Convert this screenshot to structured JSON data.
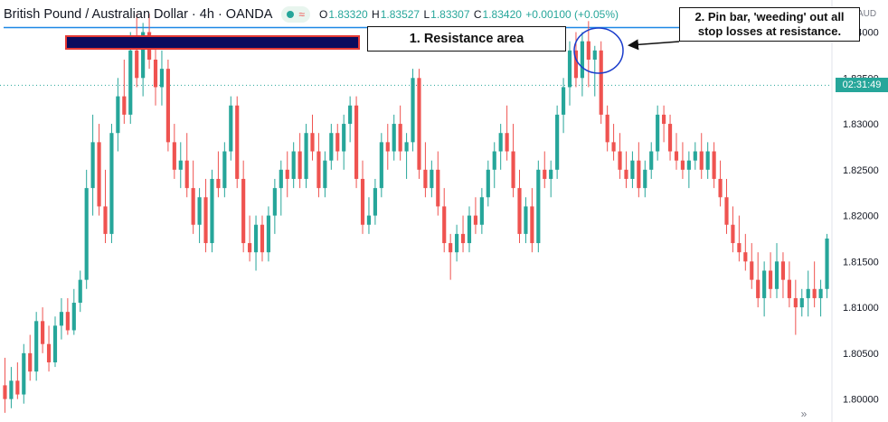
{
  "header": {
    "title": "British Pound / Australian Dollar · 4h · OANDA",
    "status_wave": "≈",
    "ohlc": {
      "o_label": "O",
      "o_value": "1.83320",
      "h_label": "H",
      "h_value": "1.83527",
      "l_label": "L",
      "l_value": "1.83307",
      "c_label": "C",
      "c_value": "1.83420",
      "change": "+0.00100 (+0.05%)"
    }
  },
  "annotations": {
    "resistance_label": "1. Resistance area",
    "pinbar_label_line1": "2. Pin bar, 'weeding' out all",
    "pinbar_label_line2": "stop losses at resistance."
  },
  "axis": {
    "currency": "AUD",
    "countdown": "02:31:49"
  },
  "scroll_icon": "double-chevron-right-icon",
  "colors": {
    "up": "#26a69a",
    "down": "#ef5350",
    "resistance_line": "#1e88e5",
    "annotation_circle": "#1a3ccc"
  },
  "chart_data": {
    "type": "candlestick",
    "title": "British Pound / Australian Dollar · 4h · OANDA",
    "ylim": [
      1.7975,
      1.8435
    ],
    "yticks": [
      1.8,
      1.805,
      1.81,
      1.815,
      1.82,
      1.825,
      1.83,
      1.835,
      1.84
    ],
    "ytick_labels": [
      "1.80000",
      "1.80500",
      "1.81000",
      "1.81500",
      "1.82000",
      "1.82500",
      "1.83000",
      "1.83500",
      "1.84000"
    ],
    "resistance_level": 1.8405,
    "last_price": 1.8342,
    "grid": false,
    "candles": [
      [
        1.8015,
        1.8045,
        1.7985,
        1.8
      ],
      [
        1.8,
        1.8035,
        1.799,
        1.802
      ],
      [
        1.802,
        1.804,
        1.8,
        1.8005
      ],
      [
        1.8005,
        1.806,
        1.7995,
        1.805
      ],
      [
        1.805,
        1.807,
        1.802,
        1.803
      ],
      [
        1.803,
        1.8095,
        1.802,
        1.8085
      ],
      [
        1.8085,
        1.81,
        1.805,
        1.806
      ],
      [
        1.806,
        1.808,
        1.803,
        1.804
      ],
      [
        1.804,
        1.809,
        1.8035,
        1.808
      ],
      [
        1.808,
        1.811,
        1.8065,
        1.8095
      ],
      [
        1.8095,
        1.811,
        1.807,
        1.8075
      ],
      [
        1.8075,
        1.812,
        1.807,
        1.8105
      ],
      [
        1.8105,
        1.814,
        1.8095,
        1.813
      ],
      [
        1.813,
        1.825,
        1.812,
        1.823
      ],
      [
        1.823,
        1.831,
        1.82,
        1.828
      ],
      [
        1.828,
        1.83,
        1.82,
        1.821
      ],
      [
        1.821,
        1.825,
        1.817,
        1.818
      ],
      [
        1.818,
        1.83,
        1.817,
        1.829
      ],
      [
        1.829,
        1.835,
        1.827,
        1.833
      ],
      [
        1.833,
        1.837,
        1.83,
        1.831
      ],
      [
        1.831,
        1.84,
        1.83,
        1.838
      ],
      [
        1.838,
        1.842,
        1.834,
        1.835
      ],
      [
        1.835,
        1.841,
        1.833,
        1.84
      ],
      [
        1.84,
        1.842,
        1.836,
        1.837
      ],
      [
        1.837,
        1.839,
        1.832,
        1.834
      ],
      [
        1.834,
        1.838,
        1.832,
        1.836
      ],
      [
        1.836,
        1.837,
        1.827,
        1.828
      ],
      [
        1.828,
        1.83,
        1.824,
        1.825
      ],
      [
        1.825,
        1.828,
        1.823,
        1.826
      ],
      [
        1.826,
        1.829,
        1.822,
        1.823
      ],
      [
        1.823,
        1.826,
        1.818,
        1.819
      ],
      [
        1.819,
        1.823,
        1.817,
        1.822
      ],
      [
        1.822,
        1.824,
        1.816,
        1.817
      ],
      [
        1.817,
        1.825,
        1.816,
        1.824
      ],
      [
        1.824,
        1.827,
        1.822,
        1.823
      ],
      [
        1.823,
        1.828,
        1.822,
        1.827
      ],
      [
        1.827,
        1.833,
        1.826,
        1.832
      ],
      [
        1.832,
        1.833,
        1.823,
        1.824
      ],
      [
        1.824,
        1.826,
        1.816,
        1.817
      ],
      [
        1.817,
        1.82,
        1.815,
        1.816
      ],
      [
        1.816,
        1.82,
        1.814,
        1.819
      ],
      [
        1.819,
        1.82,
        1.815,
        1.816
      ],
      [
        1.816,
        1.821,
        1.815,
        1.82
      ],
      [
        1.82,
        1.824,
        1.818,
        1.823
      ],
      [
        1.823,
        1.826,
        1.82,
        1.825
      ],
      [
        1.825,
        1.827,
        1.822,
        1.824
      ],
      [
        1.824,
        1.828,
        1.823,
        1.827
      ],
      [
        1.827,
        1.829,
        1.823,
        1.824
      ],
      [
        1.824,
        1.83,
        1.823,
        1.829
      ],
      [
        1.829,
        1.831,
        1.826,
        1.827
      ],
      [
        1.827,
        1.829,
        1.822,
        1.823
      ],
      [
        1.823,
        1.827,
        1.822,
        1.826
      ],
      [
        1.826,
        1.83,
        1.825,
        1.829
      ],
      [
        1.829,
        1.83,
        1.826,
        1.827
      ],
      [
        1.827,
        1.831,
        1.825,
        1.83
      ],
      [
        1.83,
        1.833,
        1.828,
        1.832
      ],
      [
        1.832,
        1.833,
        1.823,
        1.824
      ],
      [
        1.824,
        1.826,
        1.818,
        1.819
      ],
      [
        1.819,
        1.822,
        1.818,
        1.82
      ],
      [
        1.82,
        1.824,
        1.819,
        1.823
      ],
      [
        1.823,
        1.829,
        1.822,
        1.828
      ],
      [
        1.828,
        1.83,
        1.825,
        1.827
      ],
      [
        1.827,
        1.831,
        1.826,
        1.83
      ],
      [
        1.83,
        1.832,
        1.826,
        1.827
      ],
      [
        1.827,
        1.829,
        1.824,
        1.828
      ],
      [
        1.828,
        1.836,
        1.827,
        1.835
      ],
      [
        1.835,
        1.836,
        1.824,
        1.825
      ],
      [
        1.825,
        1.828,
        1.822,
        1.823
      ],
      [
        1.823,
        1.826,
        1.822,
        1.825
      ],
      [
        1.825,
        1.827,
        1.82,
        1.821
      ],
      [
        1.821,
        1.823,
        1.816,
        1.817
      ],
      [
        1.817,
        1.818,
        1.813,
        1.816
      ],
      [
        1.816,
        1.819,
        1.815,
        1.818
      ],
      [
        1.818,
        1.82,
        1.816,
        1.817
      ],
      [
        1.817,
        1.821,
        1.816,
        1.82
      ],
      [
        1.82,
        1.822,
        1.818,
        1.819
      ],
      [
        1.819,
        1.823,
        1.818,
        1.822
      ],
      [
        1.822,
        1.826,
        1.821,
        1.825
      ],
      [
        1.825,
        1.828,
        1.823,
        1.827
      ],
      [
        1.827,
        1.83,
        1.825,
        1.829
      ],
      [
        1.829,
        1.832,
        1.826,
        1.827
      ],
      [
        1.827,
        1.83,
        1.822,
        1.823
      ],
      [
        1.823,
        1.825,
        1.817,
        1.818
      ],
      [
        1.818,
        1.822,
        1.817,
        1.821
      ],
      [
        1.821,
        1.823,
        1.816,
        1.817
      ],
      [
        1.817,
        1.826,
        1.816,
        1.825
      ],
      [
        1.825,
        1.827,
        1.823,
        1.824
      ],
      [
        1.824,
        1.826,
        1.822,
        1.825
      ],
      [
        1.825,
        1.832,
        1.824,
        1.831
      ],
      [
        1.831,
        1.835,
        1.829,
        1.834
      ],
      [
        1.834,
        1.839,
        1.832,
        1.838
      ],
      [
        1.838,
        1.84,
        1.834,
        1.835
      ],
      [
        1.835,
        1.84,
        1.833,
        1.839
      ],
      [
        1.839,
        1.8412,
        1.834,
        1.837
      ],
      [
        1.837,
        1.8385,
        1.833,
        1.838
      ],
      [
        1.838,
        1.839,
        1.83,
        1.831
      ],
      [
        1.831,
        1.832,
        1.827,
        1.828
      ],
      [
        1.828,
        1.83,
        1.826,
        1.827
      ],
      [
        1.827,
        1.829,
        1.824,
        1.825
      ],
      [
        1.825,
        1.827,
        1.823,
        1.824
      ],
      [
        1.824,
        1.827,
        1.823,
        1.826
      ],
      [
        1.826,
        1.828,
        1.822,
        1.823
      ],
      [
        1.823,
        1.826,
        1.822,
        1.825
      ],
      [
        1.825,
        1.828,
        1.824,
        1.827
      ],
      [
        1.827,
        1.832,
        1.826,
        1.831
      ],
      [
        1.831,
        1.832,
        1.828,
        1.83
      ],
      [
        1.83,
        1.831,
        1.826,
        1.827
      ],
      [
        1.827,
        1.829,
        1.825,
        1.826
      ],
      [
        1.826,
        1.828,
        1.824,
        1.825
      ],
      [
        1.825,
        1.827,
        1.823,
        1.826
      ],
      [
        1.826,
        1.828,
        1.825,
        1.827
      ],
      [
        1.827,
        1.829,
        1.824,
        1.825
      ],
      [
        1.825,
        1.828,
        1.824,
        1.827
      ],
      [
        1.827,
        1.828,
        1.823,
        1.824
      ],
      [
        1.824,
        1.826,
        1.821,
        1.822
      ],
      [
        1.822,
        1.824,
        1.818,
        1.819
      ],
      [
        1.819,
        1.821,
        1.816,
        1.817
      ],
      [
        1.817,
        1.82,
        1.815,
        1.816
      ],
      [
        1.816,
        1.818,
        1.814,
        1.815
      ],
      [
        1.815,
        1.817,
        1.812,
        1.813
      ],
      [
        1.813,
        1.816,
        1.81,
        1.811
      ],
      [
        1.811,
        1.815,
        1.809,
        1.814
      ],
      [
        1.814,
        1.816,
        1.811,
        1.812
      ],
      [
        1.812,
        1.817,
        1.811,
        1.815
      ],
      [
        1.815,
        1.816,
        1.811,
        1.813
      ],
      [
        1.813,
        1.815,
        1.81,
        1.811
      ],
      [
        1.811,
        1.813,
        1.807,
        1.81
      ],
      [
        1.81,
        1.812,
        1.809,
        1.811
      ],
      [
        1.811,
        1.814,
        1.809,
        1.812
      ],
      [
        1.812,
        1.815,
        1.81,
        1.811
      ],
      [
        1.811,
        1.813,
        1.809,
        1.812
      ],
      [
        1.812,
        1.818,
        1.811,
        1.8175
      ]
    ]
  }
}
